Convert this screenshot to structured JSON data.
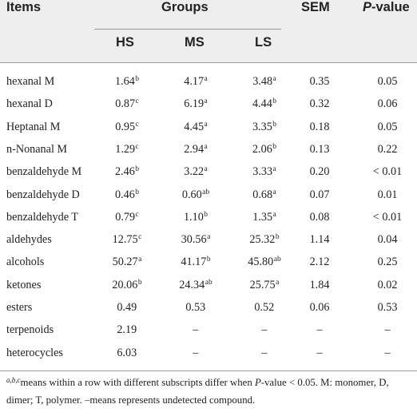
{
  "table": {
    "headers": {
      "items": "Items",
      "groups": "Groups",
      "sem": "SEM",
      "p_prefix": "P",
      "p_suffix": "-value",
      "hs": "HS",
      "ms": "MS",
      "ls": "LS"
    },
    "rows": [
      {
        "item": "hexanal M",
        "hs": "1.64",
        "hs_sup": "b",
        "ms": "4.17",
        "ms_sup": "a",
        "ls": "3.48",
        "ls_sup": "a",
        "sem": "0.35",
        "p": "0.05"
      },
      {
        "item": "hexanal D",
        "hs": "0.87",
        "hs_sup": "c",
        "ms": "6.19",
        "ms_sup": "a",
        "ls": "4.44",
        "ls_sup": "b",
        "sem": "0.32",
        "p": "0.06"
      },
      {
        "item": "Heptanal M",
        "hs": "0.95",
        "hs_sup": "c",
        "ms": "4.45",
        "ms_sup": "a",
        "ls": "3.35",
        "ls_sup": "b",
        "sem": "0.18",
        "p": "0.05"
      },
      {
        "item": "n-Nonanal M",
        "hs": "1.29",
        "hs_sup": "c",
        "ms": "2.94",
        "ms_sup": "a",
        "ls": "2.06",
        "ls_sup": "b",
        "sem": "0.13",
        "p": "0.22"
      },
      {
        "item": "benzaldehyde M",
        "hs": "2.46",
        "hs_sup": "b",
        "ms": "3.22",
        "ms_sup": "a",
        "ls": "3.33",
        "ls_sup": "a",
        "sem": "0.20",
        "p": "< 0.01"
      },
      {
        "item": "benzaldehyde D",
        "hs": "0.46",
        "hs_sup": "b",
        "ms": "0.60",
        "ms_sup": "ab",
        "ls": "0.68",
        "ls_sup": "a",
        "sem": "0.07",
        "p": "0.01"
      },
      {
        "item": "benzaldehyde T",
        "hs": "0.79",
        "hs_sup": "c",
        "ms": "1.10",
        "ms_sup": "b",
        "ls": "1.35",
        "ls_sup": "a",
        "sem": "0.08",
        "p": "< 0.01"
      },
      {
        "item": "aldehydes",
        "hs": "12.75",
        "hs_sup": "c",
        "ms": "30.56",
        "ms_sup": "a",
        "ls": "25.32",
        "ls_sup": "b",
        "sem": "1.14",
        "p": "0.04"
      },
      {
        "item": "alcohols",
        "hs": "50.27",
        "hs_sup": "a",
        "ms": "41.17",
        "ms_sup": "b",
        "ls": "45.80",
        "ls_sup": "ab",
        "sem": "2.12",
        "p": "0.25"
      },
      {
        "item": "ketones",
        "hs": "20.06",
        "hs_sup": "b",
        "ms": "24.34",
        "ms_sup": "ab",
        "ls": "25.75",
        "ls_sup": "a",
        "sem": "1.84",
        "p": "0.02"
      },
      {
        "item": "esters",
        "hs": "0.49",
        "hs_sup": "",
        "ms": "0.53",
        "ms_sup": "",
        "ls": "0.52",
        "ls_sup": "",
        "sem": "0.06",
        "p": "0.53"
      },
      {
        "item": "terpenoids",
        "hs": "2.19",
        "hs_sup": "",
        "ms": "–",
        "ms_sup": "",
        "ls": "–",
        "ls_sup": "",
        "sem": "–",
        "p": "–"
      },
      {
        "item": "heterocycles",
        "hs": "6.03",
        "hs_sup": "",
        "ms": "–",
        "ms_sup": "",
        "ls": "–",
        "ls_sup": "",
        "sem": "–",
        "p": "–"
      }
    ]
  },
  "footnote": {
    "sup": "a,b,c",
    "text_1": "means within a row with different subscripts differ when ",
    "p_italic": "P",
    "text_2": "-value < 0.05. M: monomer, D, dimer; T, polymer. –means represents undetected compound."
  }
}
